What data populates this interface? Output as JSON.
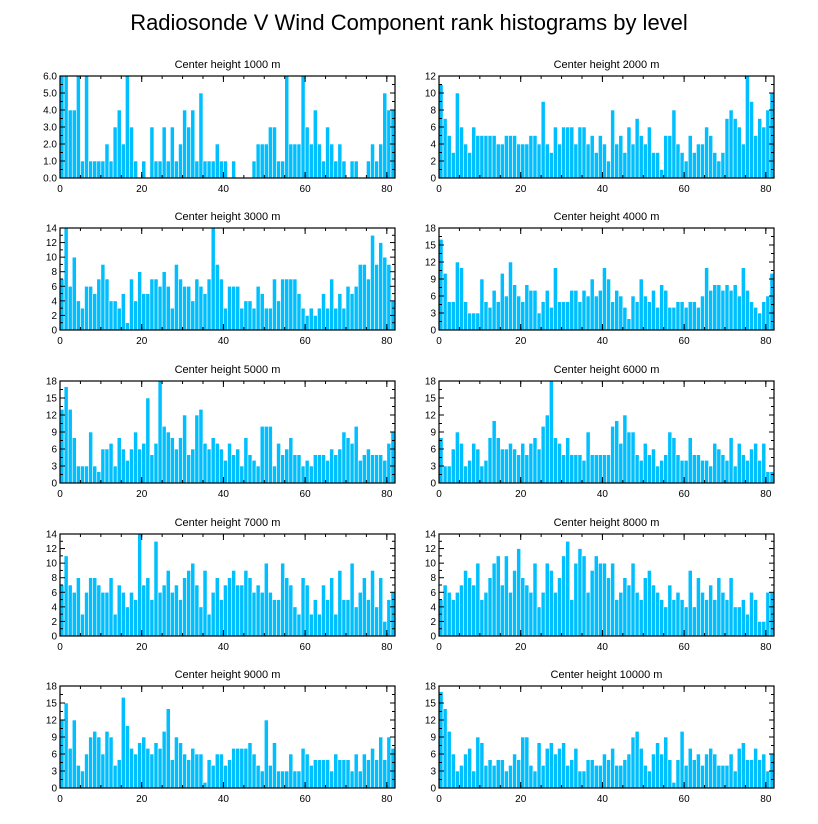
{
  "title": "Radiosonde V Wind Component rank histograms by level",
  "bar_color": "#00BFFF",
  "chart_data": [
    {
      "type": "bar",
      "title": "Center height 1000 m",
      "xlim": [
        0,
        82
      ],
      "ylim": [
        0,
        6
      ],
      "yticks": [
        "0.0",
        "1.0",
        "2.0",
        "3.0",
        "4.0",
        "5.0",
        "6.0"
      ],
      "xticks": [
        "0",
        "20",
        "40",
        "60",
        "80"
      ],
      "values": [
        6,
        6,
        4,
        4,
        6,
        1,
        6,
        1,
        1,
        1,
        1,
        2,
        1,
        3,
        4,
        2,
        6,
        3,
        1,
        0,
        1,
        0,
        3,
        1,
        1,
        3,
        1,
        3,
        1,
        2,
        4,
        3,
        4,
        1,
        5,
        1,
        1,
        1,
        2,
        1,
        1,
        0,
        1,
        0,
        0,
        0,
        0,
        1,
        2,
        2,
        2,
        3,
        3,
        1,
        1,
        6,
        2,
        2,
        2,
        6,
        3,
        2,
        4,
        2,
        1,
        3,
        2,
        1,
        2,
        1,
        0,
        1,
        1,
        0,
        0,
        1,
        2,
        1,
        2,
        5,
        4,
        4
      ]
    },
    {
      "type": "bar",
      "title": "Center height 2000 m",
      "xlim": [
        0,
        82
      ],
      "ylim": [
        0,
        12
      ],
      "yticks": [
        "0",
        "2",
        "4",
        "6",
        "8",
        "10",
        "12"
      ],
      "xticks": [
        "0",
        "20",
        "40",
        "60",
        "80"
      ],
      "values": [
        11,
        7,
        5,
        3,
        10,
        6,
        4,
        3,
        6,
        5,
        5,
        5,
        5,
        5,
        4,
        4,
        5,
        5,
        5,
        4,
        4,
        4,
        5,
        5,
        4,
        9,
        4,
        3,
        6,
        4,
        6,
        6,
        6,
        4,
        6,
        6,
        4,
        5,
        3,
        5,
        4,
        2,
        8,
        4,
        5,
        3,
        6,
        4,
        7,
        5,
        4,
        6,
        3,
        3,
        1,
        5,
        5,
        8,
        4,
        3,
        2,
        5,
        3,
        4,
        4,
        6,
        5,
        3,
        2,
        3,
        7,
        8,
        7,
        6,
        4,
        12,
        9,
        5,
        7,
        6,
        8,
        10
      ]
    },
    {
      "type": "bar",
      "title": "Center height 3000 m",
      "xlim": [
        0,
        82
      ],
      "ylim": [
        0,
        14
      ],
      "yticks": [
        "0",
        "2",
        "4",
        "6",
        "8",
        "10",
        "12",
        "14"
      ],
      "xticks": [
        "0",
        "20",
        "40",
        "60",
        "80"
      ],
      "values": [
        7,
        14,
        6,
        10,
        4,
        3,
        6,
        6,
        5,
        7,
        9,
        7,
        4,
        4,
        3,
        5,
        1,
        7,
        4,
        8,
        5,
        5,
        7,
        7,
        6,
        8,
        6,
        3,
        9,
        7,
        6,
        6,
        4,
        7,
        6,
        5,
        7,
        14,
        9,
        7,
        3,
        6,
        6,
        6,
        3,
        4,
        4,
        3,
        6,
        5,
        3,
        3,
        7,
        4,
        7,
        7,
        7,
        7,
        5,
        3,
        2,
        3,
        2,
        3,
        5,
        3,
        7,
        3,
        5,
        3,
        6,
        5,
        6,
        9,
        9,
        7,
        13,
        9,
        12,
        10,
        9,
        4
      ]
    },
    {
      "type": "bar",
      "title": "Center height 4000 m",
      "xlim": [
        0,
        82
      ],
      "ylim": [
        0,
        18
      ],
      "yticks": [
        "0",
        "3",
        "6",
        "9",
        "12",
        "15",
        "18"
      ],
      "xticks": [
        "0",
        "20",
        "40",
        "60",
        "80"
      ],
      "values": [
        16,
        10,
        5,
        5,
        12,
        11,
        5,
        3,
        3,
        3,
        9,
        5,
        4,
        7,
        5,
        10,
        6,
        12,
        8,
        6,
        5,
        8,
        7,
        7,
        3,
        5,
        7,
        4,
        11,
        5,
        5,
        5,
        7,
        7,
        5,
        7,
        6,
        9,
        6,
        7,
        11,
        9,
        5,
        7,
        6,
        4,
        2,
        6,
        5,
        9,
        6,
        5,
        7,
        4,
        8,
        7,
        4,
        4,
        5,
        5,
        4,
        5,
        5,
        4,
        6,
        11,
        7,
        8,
        8,
        7,
        8,
        7,
        8,
        6,
        11,
        7,
        5,
        4,
        3,
        5,
        6,
        10
      ]
    },
    {
      "type": "bar",
      "title": "Center height 5000 m",
      "xlim": [
        0,
        82
      ],
      "ylim": [
        0,
        18
      ],
      "yticks": [
        "0",
        "3",
        "6",
        "9",
        "12",
        "15",
        "18"
      ],
      "xticks": [
        "0",
        "20",
        "40",
        "60",
        "80"
      ],
      "values": [
        13,
        17,
        13,
        8,
        3,
        3,
        3,
        9,
        3,
        2,
        6,
        6,
        7,
        3,
        8,
        6,
        4,
        6,
        9,
        6,
        7,
        15,
        5,
        7,
        18,
        10,
        9,
        8,
        6,
        8,
        12,
        5,
        6,
        12,
        13,
        7,
        6,
        8,
        7,
        6,
        4,
        7,
        5,
        6,
        3,
        8,
        5,
        4,
        3,
        10,
        10,
        10,
        3,
        7,
        5,
        6,
        8,
        5,
        5,
        3,
        4,
        3,
        5,
        5,
        5,
        4,
        6,
        5,
        6,
        9,
        8,
        7,
        10,
        4,
        5,
        6,
        5,
        5,
        5,
        4,
        7,
        9
      ]
    },
    {
      "type": "bar",
      "title": "Center height 6000 m",
      "xlim": [
        0,
        82
      ],
      "ylim": [
        0,
        18
      ],
      "yticks": [
        "0",
        "3",
        "6",
        "9",
        "12",
        "15",
        "18"
      ],
      "xticks": [
        "0",
        "20",
        "40",
        "60",
        "80"
      ],
      "values": [
        8,
        3,
        3,
        6,
        9,
        7,
        3,
        4,
        7,
        6,
        3,
        4,
        8,
        11,
        8,
        6,
        6,
        7,
        6,
        5,
        7,
        5,
        7,
        8,
        6,
        10,
        12,
        18,
        8,
        7,
        5,
        8,
        5,
        5,
        5,
        4,
        9,
        5,
        5,
        5,
        5,
        5,
        10,
        11,
        7,
        12,
        9,
        9,
        5,
        4,
        7,
        5,
        6,
        3,
        4,
        5,
        9,
        8,
        5,
        4,
        4,
        8,
        5,
        5,
        4,
        4,
        3,
        7,
        6,
        5,
        4,
        8,
        3,
        7,
        5,
        4,
        6,
        7,
        4,
        7,
        2,
        2
      ]
    },
    {
      "type": "bar",
      "title": "Center height 7000 m",
      "xlim": [
        0,
        82
      ],
      "ylim": [
        0,
        14
      ],
      "yticks": [
        "0",
        "2",
        "4",
        "6",
        "8",
        "10",
        "12",
        "14"
      ],
      "xticks": [
        "0",
        "20",
        "40",
        "60",
        "80"
      ],
      "values": [
        7,
        11,
        7,
        6,
        8,
        3,
        6,
        8,
        8,
        7,
        6,
        6,
        8,
        3,
        7,
        6,
        4,
        6,
        5,
        14,
        7,
        8,
        5,
        13,
        6,
        7,
        9,
        6,
        7,
        5,
        8,
        9,
        10,
        7,
        4,
        9,
        3,
        6,
        8,
        5,
        7,
        8,
        9,
        7,
        7,
        9,
        8,
        6,
        7,
        6,
        10,
        6,
        5,
        5,
        10,
        8,
        7,
        4,
        3,
        8,
        7,
        3,
        5,
        3,
        7,
        5,
        8,
        3,
        9,
        5,
        5,
        10,
        4,
        6,
        8,
        5,
        9,
        4,
        8,
        2,
        5,
        6
      ]
    },
    {
      "type": "bar",
      "title": "Center height 8000 m",
      "xlim": [
        0,
        82
      ],
      "ylim": [
        0,
        14
      ],
      "yticks": [
        "0",
        "2",
        "4",
        "6",
        "8",
        "10",
        "12",
        "14"
      ],
      "xticks": [
        "0",
        "20",
        "40",
        "60",
        "80"
      ],
      "values": [
        5,
        7,
        6,
        5,
        6,
        7,
        9,
        8,
        7,
        10,
        5,
        6,
        8,
        10,
        11,
        7,
        11,
        6,
        9,
        12,
        8,
        7,
        6,
        10,
        4,
        6,
        10,
        9,
        6,
        8,
        11,
        13,
        5,
        10,
        12,
        11,
        6,
        9,
        11,
        10,
        10,
        8,
        10,
        5,
        6,
        8,
        7,
        10,
        6,
        5,
        8,
        9,
        7,
        6,
        5,
        4,
        7,
        5,
        6,
        5,
        4,
        9,
        4,
        8,
        6,
        5,
        7,
        5,
        8,
        6,
        5,
        8,
        4,
        4,
        5,
        3,
        6,
        5,
        2,
        2,
        6,
        6
      ]
    },
    {
      "type": "bar",
      "title": "Center height 9000 m",
      "xlim": [
        0,
        82
      ],
      "ylim": [
        0,
        18
      ],
      "yticks": [
        "0",
        "3",
        "6",
        "9",
        "12",
        "15",
        "18"
      ],
      "xticks": [
        "0",
        "20",
        "40",
        "60",
        "80"
      ],
      "values": [
        12,
        15,
        7,
        12,
        4,
        3,
        6,
        9,
        10,
        9,
        6,
        10,
        9,
        4,
        5,
        16,
        11,
        7,
        6,
        8,
        9,
        7,
        6,
        8,
        7,
        10,
        14,
        5,
        9,
        8,
        6,
        5,
        7,
        6,
        6,
        1,
        5,
        4,
        6,
        6,
        4,
        5,
        7,
        7,
        7,
        7,
        8,
        6,
        4,
        3,
        12,
        4,
        8,
        3,
        3,
        3,
        6,
        3,
        3,
        7,
        6,
        4,
        5,
        5,
        5,
        5,
        3,
        6,
        5,
        5,
        5,
        3,
        6,
        3,
        6,
        5,
        7,
        5,
        9,
        5,
        9,
        7
      ]
    },
    {
      "type": "bar",
      "title": "Center height 10000 m",
      "xlim": [
        0,
        82
      ],
      "ylim": [
        0,
        18
      ],
      "yticks": [
        "0",
        "3",
        "6",
        "9",
        "12",
        "15",
        "18"
      ],
      "xticks": [
        "0",
        "20",
        "40",
        "60",
        "80"
      ],
      "values": [
        17,
        14,
        10,
        6,
        3,
        4,
        6,
        7,
        3,
        9,
        8,
        4,
        5,
        4,
        5,
        5,
        3,
        4,
        6,
        5,
        9,
        9,
        4,
        3,
        8,
        4,
        7,
        8,
        6,
        7,
        8,
        4,
        5,
        7,
        3,
        3,
        5,
        5,
        4,
        4,
        6,
        5,
        7,
        4,
        4,
        5,
        6,
        9,
        10,
        7,
        4,
        3,
        6,
        8,
        6,
        9,
        5,
        1,
        5,
        10,
        4,
        7,
        5,
        6,
        4,
        6,
        7,
        6,
        4,
        4,
        4,
        6,
        3,
        7,
        8,
        5,
        5,
        7,
        5,
        6,
        3,
        6
      ]
    }
  ]
}
